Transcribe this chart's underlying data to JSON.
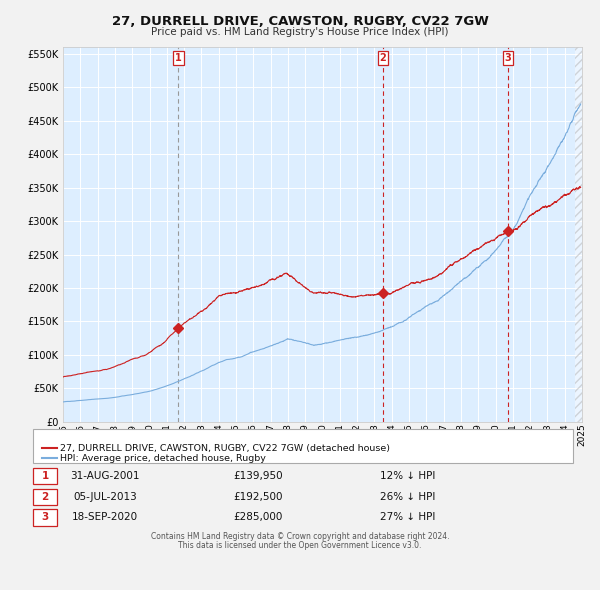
{
  "title": "27, DURRELL DRIVE, CAWSTON, RUGBY, CV22 7GW",
  "subtitle": "Price paid vs. HM Land Registry's House Price Index (HPI)",
  "legend_line1": "27, DURRELL DRIVE, CAWSTON, RUGBY, CV22 7GW (detached house)",
  "legend_line2": "HPI: Average price, detached house, Rugby",
  "footer1": "Contains HM Land Registry data © Crown copyright and database right 2024.",
  "footer2": "This data is licensed under the Open Government Licence v3.0.",
  "sale1_date": "31-AUG-2001",
  "sale1_price": 139950,
  "sale1_pct": "12%",
  "sale2_date": "05-JUL-2013",
  "sale2_price": 192500,
  "sale2_pct": "26%",
  "sale3_date": "18-SEP-2020",
  "sale3_price": 285000,
  "sale3_pct": "27%",
  "sale1_year": 2001.67,
  "sale2_year": 2013.5,
  "sale3_year": 2020.72,
  "ylim_max": 560000,
  "ylim_min": 0,
  "xlim_min": 1995,
  "xlim_max": 2025,
  "hpi_color": "#7aaddd",
  "price_color": "#cc2222",
  "bg_color": "#ddeeff",
  "grid_color": "#ffffff",
  "marker_color": "#cc2222",
  "vline1_color": "#999999",
  "vline23_color": "#cc2222",
  "hatch_start": 2024.58
}
